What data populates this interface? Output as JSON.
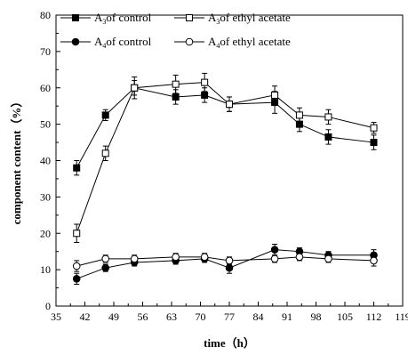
{
  "chart_data": {
    "type": "line",
    "xlabel": "time（h）",
    "ylabel": "component content（%）",
    "xlim": [
      35,
      119
    ],
    "ylim": [
      0,
      80
    ],
    "xticks": [
      35,
      42,
      49,
      56,
      63,
      70,
      77,
      84,
      91,
      98,
      105,
      112,
      119
    ],
    "yticks": [
      0,
      10,
      20,
      30,
      40,
      50,
      60,
      70,
      80
    ],
    "grid": false,
    "legend_position": "top-left",
    "series": [
      {
        "name_main": "A",
        "name_sub": "3",
        "name_rest": "of control",
        "marker": "square-filled",
        "x": [
          40,
          47,
          54,
          64,
          71,
          77,
          88,
          94,
          101,
          112
        ],
        "y": [
          38,
          52.5,
          60,
          57.5,
          58,
          55.5,
          56,
          50,
          46.5,
          45
        ],
        "err": [
          2,
          1.5,
          2,
          2,
          2,
          2,
          3,
          2,
          2,
          2
        ]
      },
      {
        "name_main": "A",
        "name_sub": "3",
        "name_rest": "of ethyl acetate",
        "marker": "square-open",
        "x": [
          40,
          47,
          54,
          64,
          71,
          77,
          88,
          94,
          101,
          112
        ],
        "y": [
          20,
          42,
          60,
          61,
          61.5,
          55.5,
          58,
          52.5,
          52,
          49
        ],
        "err": [
          2.5,
          2,
          3,
          2.5,
          2.5,
          2,
          2.5,
          2,
          2,
          1.5
        ]
      },
      {
        "name_main": "A",
        "name_sub": "4",
        "name_rest": "of control",
        "marker": "circle-filled",
        "x": [
          40,
          47,
          54,
          64,
          71,
          77,
          88,
          94,
          101,
          112
        ],
        "y": [
          7.5,
          10.5,
          12,
          12.5,
          13,
          10.5,
          15.5,
          15,
          14,
          14
        ],
        "err": [
          1.5,
          1,
          1,
          1,
          1,
          1.5,
          1.5,
          1,
          1,
          1.5
        ]
      },
      {
        "name_main": "A",
        "name_sub": "4",
        "name_rest": "of ethyl acetate",
        "marker": "circle-open",
        "x": [
          40,
          47,
          54,
          64,
          71,
          77,
          88,
          94,
          101,
          112
        ],
        "y": [
          11,
          13,
          13,
          13.5,
          13.5,
          12.5,
          13,
          13.5,
          13,
          12.5
        ],
        "err": [
          1.5,
          1,
          1,
          1,
          1,
          1,
          1,
          1,
          1,
          1.5
        ]
      }
    ]
  }
}
